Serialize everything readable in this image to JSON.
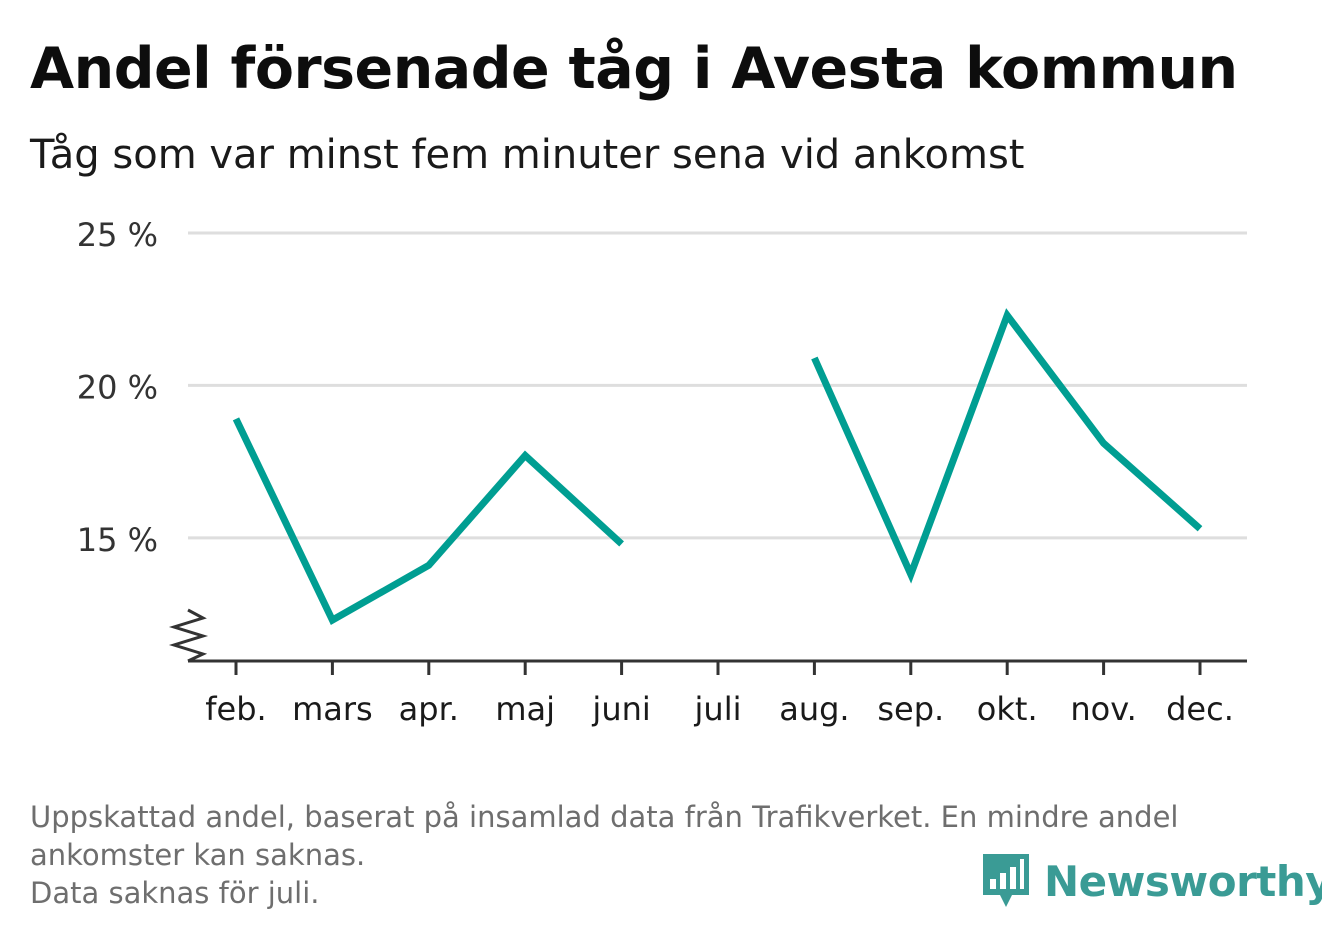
{
  "title": "Andel försenade tåg i Avesta kommun",
  "subtitle": "Tåg som var minst fem minuter sena vid ankomst",
  "footnote": {
    "line1": "Uppskattad andel, baserat på insamlad data från Trafikverket. En mindre andel",
    "line2": "ankomster kan saknas.",
    "line3": "Data saknas för juli."
  },
  "logo": {
    "text": "Newsworthy",
    "icon": "bar-chart-icon",
    "color": "#3a9b95"
  },
  "chart_data": {
    "type": "line",
    "categories": [
      "feb.",
      "mars",
      "apr.",
      "maj",
      "juni",
      "juli",
      "aug.",
      "sep.",
      "okt.",
      "nov.",
      "dec."
    ],
    "series": [
      {
        "values": [
          18.9,
          12.3,
          14.1,
          17.7,
          14.8,
          null,
          20.9,
          13.8,
          22.3,
          18.1,
          15.3
        ],
        "color": "#009e92"
      }
    ],
    "yticks": [
      15,
      20,
      25
    ],
    "ytick_labels": [
      "15 %",
      "20 %",
      "25 %"
    ],
    "ylim": [
      10.5,
      25
    ],
    "y_axis_break": true,
    "grid": true
  }
}
